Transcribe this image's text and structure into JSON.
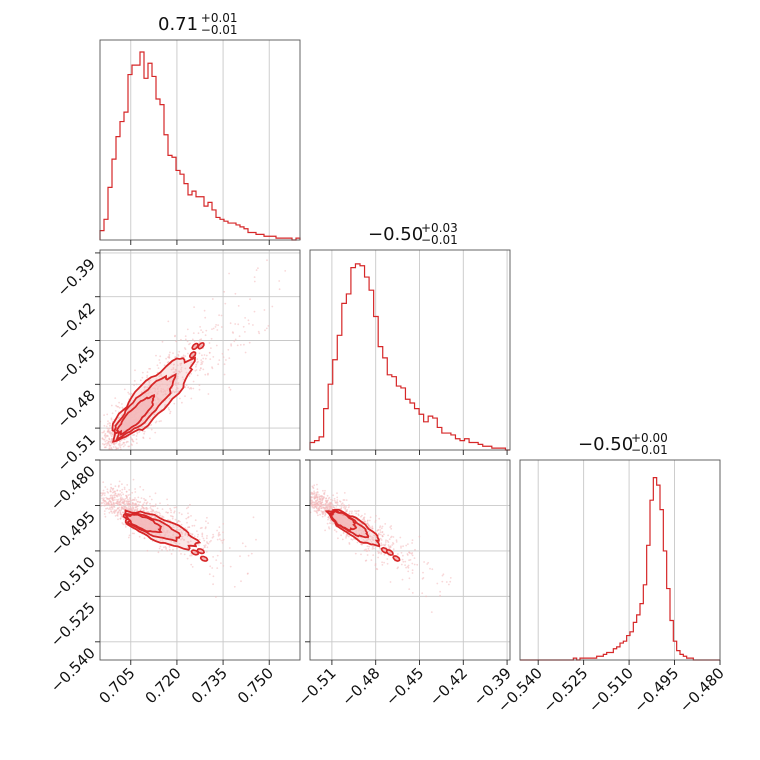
{
  "chart_data": {
    "type": "corner",
    "color": "#d62728",
    "fill_color": "#f4b9ba",
    "scatter_color": "#f2b8b9",
    "grid": true,
    "parameters": [
      {
        "title": {
          "value": "0.71",
          "plus": "+0.01",
          "minus": "−0.01"
        },
        "range": [
          0.695,
          0.76
        ],
        "ticks": [
          0.705,
          0.72,
          0.735,
          0.75
        ],
        "tick_labels": [
          "0.705",
          "0.720",
          "0.735",
          "0.750"
        ],
        "histogram": [
          0.05,
          0.11,
          0.28,
          0.43,
          0.55,
          0.63,
          0.68,
          0.88,
          0.93,
          0.93,
          1.0,
          0.86,
          0.94,
          0.87,
          0.75,
          0.72,
          0.56,
          0.45,
          0.44,
          0.37,
          0.35,
          0.3,
          0.24,
          0.26,
          0.23,
          0.23,
          0.18,
          0.2,
          0.16,
          0.12,
          0.11,
          0.1,
          0.09,
          0.09,
          0.08,
          0.07,
          0.06,
          0.04,
          0.04,
          0.03,
          0.03,
          0.02,
          0.02,
          0.02,
          0.01,
          0.01,
          0.01,
          0.01,
          0.0,
          0.01
        ]
      },
      {
        "title": {
          "value": "−0.50",
          "plus": "+0.03",
          "minus": "−0.01"
        },
        "range": [
          -0.525,
          -0.388
        ],
        "ticks": [
          -0.51,
          -0.48,
          -0.45,
          -0.42,
          -0.39
        ],
        "tick_labels": [
          "−0.51",
          "−0.48",
          "−0.45",
          "−0.42",
          "−0.39"
        ],
        "histogram": [
          0.04,
          0.05,
          0.07,
          0.22,
          0.35,
          0.48,
          0.61,
          0.78,
          0.83,
          0.97,
          0.99,
          0.98,
          0.92,
          0.85,
          0.71,
          0.55,
          0.49,
          0.4,
          0.39,
          0.34,
          0.33,
          0.27,
          0.25,
          0.22,
          0.19,
          0.15,
          0.18,
          0.17,
          0.12,
          0.09,
          0.09,
          0.08,
          0.06,
          0.05,
          0.06,
          0.04,
          0.04,
          0.03,
          0.02,
          0.02,
          0.01,
          0.01,
          0.01,
          0.0
        ]
      },
      {
        "title": {
          "value": "−0.50",
          "plus": "+0.00",
          "minus": "−0.01"
        },
        "range": [
          -0.546,
          -0.48
        ],
        "ticks": [
          -0.54,
          -0.525,
          -0.51,
          -0.495,
          -0.48
        ],
        "tick_labels": [
          "−0.540",
          "−0.525",
          "−0.510",
          "−0.495",
          "−0.480"
        ],
        "histogram": [
          0.0,
          0.0,
          0.0,
          0.0,
          0.0,
          0.0,
          0.0,
          0.0,
          0.0,
          0.0,
          0.0,
          0.0,
          0.0,
          0.0,
          0.0,
          0.0,
          0.01,
          0.0,
          0.01,
          0.01,
          0.01,
          0.01,
          0.01,
          0.02,
          0.02,
          0.03,
          0.04,
          0.04,
          0.06,
          0.07,
          0.09,
          0.1,
          0.13,
          0.15,
          0.2,
          0.24,
          0.3,
          0.4,
          0.61,
          0.85,
          0.97,
          0.93,
          0.8,
          0.58,
          0.38,
          0.21,
          0.1,
          0.05,
          0.03,
          0.02,
          0.01,
          0.01,
          0.0,
          0.0,
          0.0,
          0.0,
          0.0,
          0.0,
          0.0,
          0.0
        ]
      }
    ],
    "pairs": [
      {
        "x_param": 0,
        "y_param": 1,
        "trend": {
          "x": [
            0.697,
            0.755
          ],
          "y": [
            -0.52,
            -0.405
          ]
        },
        "spread": [
          0.0028,
          0.011
        ],
        "contour_center": {
          "x": 0.703,
          "y": -0.509
        },
        "contour_tail": {
          "x": 0.722,
          "y": -0.468
        },
        "outer_end": {
          "x": 0.7255,
          "y": -0.46
        }
      },
      {
        "x_param": 0,
        "y_param": 2,
        "trend": {
          "x": [
            0.697,
            0.745
          ],
          "y": [
            -0.4925,
            -0.516
          ]
        },
        "spread": [
          0.0035,
          0.0035
        ],
        "contour_center": {
          "x": 0.706,
          "y": -0.4995
        },
        "contour_tail": {
          "x": 0.724,
          "y": -0.507
        },
        "outer_end": {
          "x": 0.7265,
          "y": -0.5105
        }
      },
      {
        "x_param": 1,
        "y_param": 2,
        "trend": {
          "x": [
            -0.525,
            -0.43
          ],
          "y": [
            -0.4925,
            -0.5215
          ]
        },
        "spread": [
          0.0045,
          0.0032
        ],
        "contour_center": {
          "x": -0.507,
          "y": -0.4985
        },
        "contour_tail": {
          "x": -0.481,
          "y": -0.5065
        },
        "outer_end": {
          "x": -0.472,
          "y": -0.51
        }
      }
    ]
  }
}
